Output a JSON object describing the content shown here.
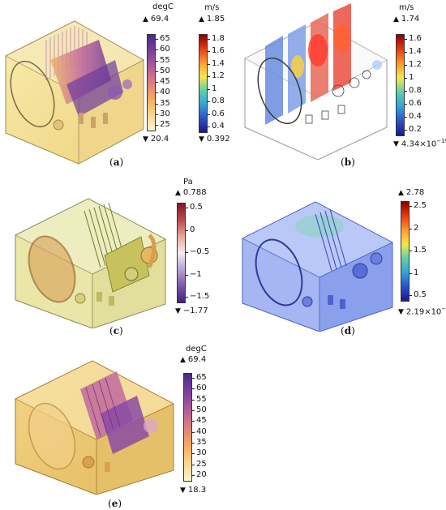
{
  "panels": [
    {
      "id": "a",
      "caption": "a",
      "colorbars": [
        {
          "unit": "degC",
          "max_label": "69.4",
          "min_label": "20.4",
          "ticks": [
            "65",
            "60",
            "55",
            "50",
            "45",
            "40",
            "35",
            "30",
            "25"
          ],
          "gradient": [
            "#4a2a86",
            "#7a3f99",
            "#b05a9a",
            "#e07f7e",
            "#f3aa5f",
            "#f8d88c",
            "#fff4d2"
          ]
        },
        {
          "unit": "m/s",
          "max_label": "1.85",
          "min_label": "0.392",
          "ticks": [
            "1.8",
            "1.6",
            "1.4",
            "1.2",
            "1",
            "0.8",
            "0.6",
            "0.4"
          ],
          "gradient": [
            "#8b0000",
            "#e83b10",
            "#fd9a2e",
            "#f6e84a",
            "#5fd0a9",
            "#2fa4d8",
            "#2d52c7",
            "#1b1788"
          ]
        }
      ]
    },
    {
      "id": "b",
      "caption": "b",
      "colorbars": [
        {
          "unit": "m/s",
          "max_label": "1.74",
          "min_label": "4.34×10",
          "min_exp": "−19",
          "ticks": [
            "1.6",
            "1.4",
            "1.2",
            "1",
            "0.8",
            "0.6",
            "0.4",
            "0.2"
          ],
          "gradient": [
            "#8b0000",
            "#e83b10",
            "#fd9a2e",
            "#f6e84a",
            "#5fd0a9",
            "#2fa4d8",
            "#2d52c7",
            "#1b1788"
          ]
        }
      ]
    },
    {
      "id": "c",
      "caption": "c",
      "colorbars": [
        {
          "unit": "Pa",
          "max_label": "0.788",
          "min_label": "−1.77",
          "ticks": [
            "0.5",
            "0",
            "−0.5",
            "−1",
            "−1.5"
          ],
          "gradient": [
            "#7a1a2e",
            "#b94b4b",
            "#e8a79a",
            "#f2eef0",
            "#b9a3cf",
            "#7d57a8",
            "#43207a"
          ]
        }
      ]
    },
    {
      "id": "d",
      "caption": "d",
      "colorbars": [
        {
          "unit": "",
          "max_label": "2.78",
          "min_label": "2.19×10",
          "min_exp": "−4",
          "ticks": [
            "2.5",
            "2",
            "1.5",
            "1",
            "0.5"
          ],
          "gradient": [
            "#8b0000",
            "#e83b10",
            "#fd9a2e",
            "#f6e84a",
            "#5fd0a9",
            "#2fa4d8",
            "#2d52c7",
            "#1b1788"
          ]
        }
      ]
    },
    {
      "id": "e",
      "caption": "e",
      "colorbars": [
        {
          "unit": "degC",
          "max_label": "69.4",
          "min_label": "18.3",
          "ticks": [
            "65",
            "60",
            "55",
            "50",
            "45",
            "40",
            "35",
            "30",
            "25",
            "20"
          ],
          "gradient": [
            "#4a2a86",
            "#7a3f99",
            "#b05a9a",
            "#e07f7e",
            "#f3aa5f",
            "#f8d88c",
            "#fff4d2"
          ]
        }
      ]
    }
  ]
}
